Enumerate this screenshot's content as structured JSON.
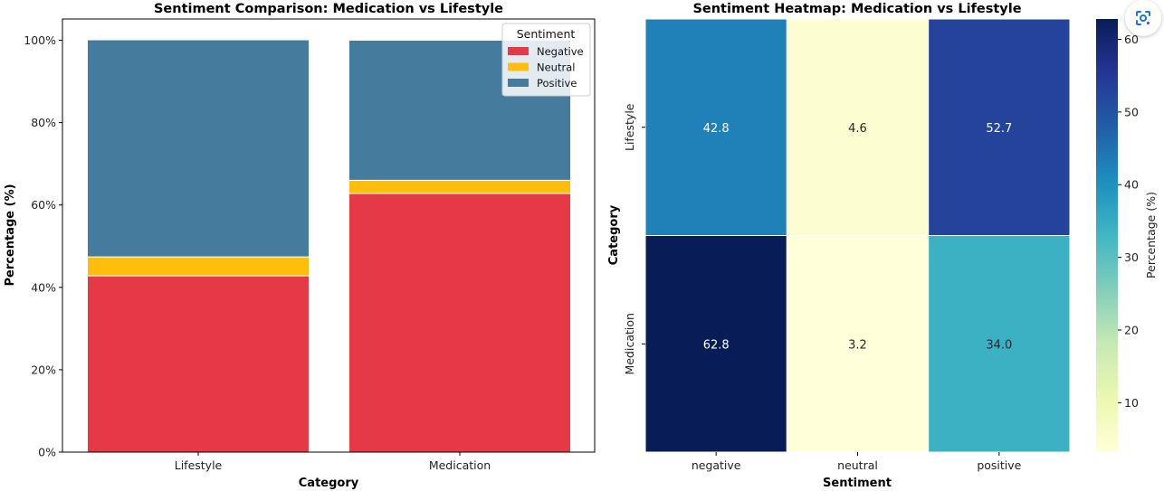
{
  "chart_data": [
    {
      "type": "bar",
      "stacked": true,
      "title": "Sentiment Comparison: Medication vs Lifestyle",
      "xlabel": "Category",
      "ylabel": "Percentage (%)",
      "categories": [
        "Lifestyle",
        "Medication"
      ],
      "ylim": [
        0,
        100
      ],
      "yticks": [
        "0%",
        "20%",
        "40%",
        "60%",
        "80%",
        "100%"
      ],
      "series": [
        {
          "name": "Negative",
          "color": "#e63946",
          "values": [
            42.8,
            62.8
          ]
        },
        {
          "name": "Neutral",
          "color": "#ffbe0b",
          "values": [
            4.6,
            3.2
          ]
        },
        {
          "name": "Positive",
          "color": "#457b9d",
          "values": [
            52.7,
            34.0
          ]
        }
      ],
      "legend": {
        "title": "Sentiment",
        "position": "top-right"
      },
      "grid": false
    },
    {
      "type": "heatmap",
      "title": "Sentiment Heatmap: Medication vs Lifestyle",
      "xlabel": "Sentiment",
      "ylabel": "Category",
      "columns": [
        "negative",
        "neutral",
        "positive"
      ],
      "rows": [
        "Lifestyle",
        "Medication"
      ],
      "values": [
        [
          42.8,
          4.6,
          52.7
        ],
        [
          62.8,
          3.2,
          34.0
        ]
      ],
      "colormap": "YlGnBu",
      "colorbar": {
        "label": "Percentage (%)",
        "ticks": [
          "10",
          "20",
          "30",
          "40",
          "50",
          "60"
        ],
        "range": [
          3.2,
          62.8
        ]
      }
    }
  ],
  "toolbar": {
    "lens_icon": "google-lens-icon"
  }
}
